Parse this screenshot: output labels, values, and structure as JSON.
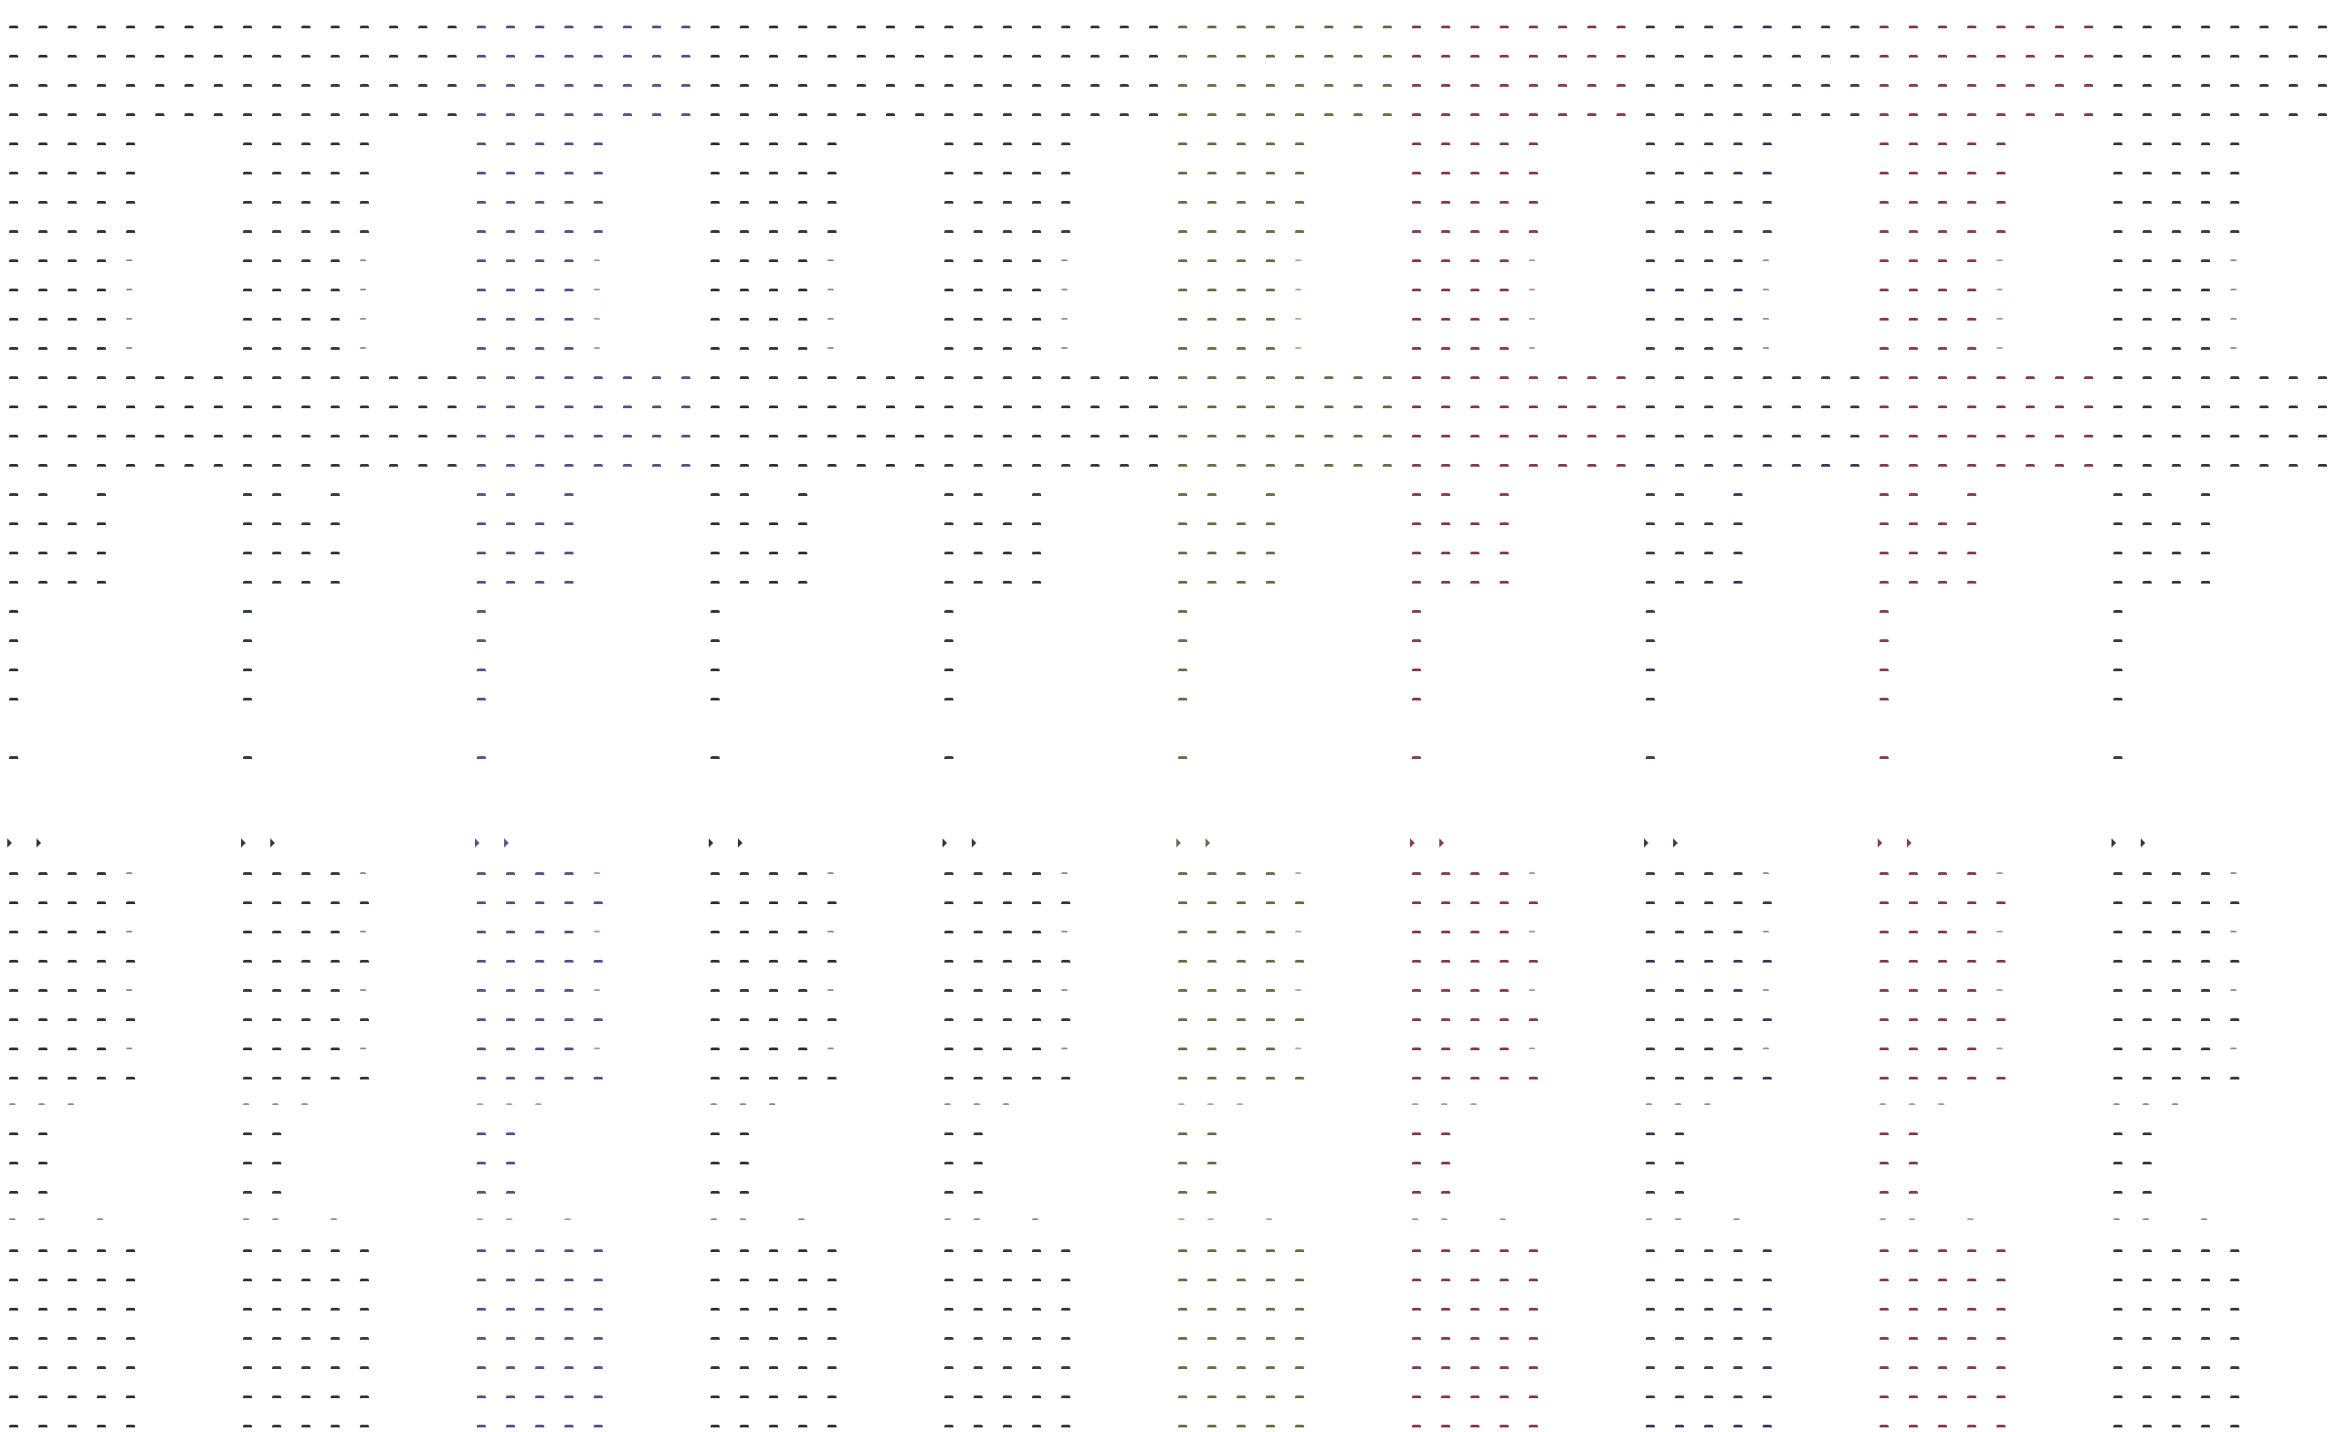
{
  "panels": [
    {
      "color": "#34343c"
    },
    {
      "color": "#363a44"
    },
    {
      "color": "#55578a"
    },
    {
      "color": "#34343c"
    },
    {
      "color": "#3a3a40"
    },
    {
      "color": "#6b7048"
    },
    {
      "color": "#8a3c55"
    },
    {
      "color": "#3a3f58"
    },
    {
      "color": "#8a3c55"
    },
    {
      "color": "#3a3a40"
    }
  ],
  "background": "#ffffff"
}
